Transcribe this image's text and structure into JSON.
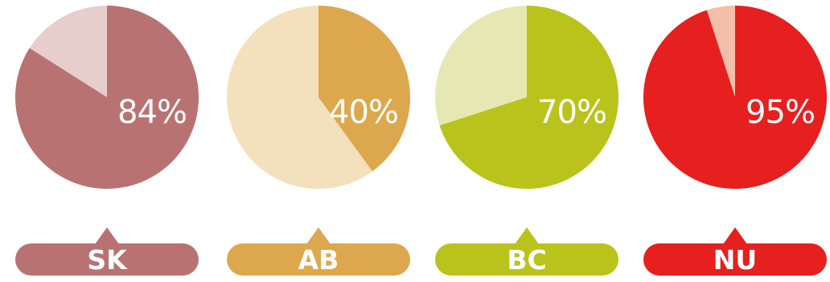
{
  "chart_data": {
    "type": "pie",
    "title": "",
    "charts": [
      {
        "region": "SK",
        "percent": 84,
        "value_label": "84%",
        "main_color": "#b97272",
        "rest_color": "#e8cdcd"
      },
      {
        "region": "AB",
        "percent": 40,
        "value_label": "40%",
        "main_color": "#dda84d",
        "rest_color": "#f3e0bd"
      },
      {
        "region": "BC",
        "percent": 70,
        "value_label": "70%",
        "main_color": "#b9c31c",
        "rest_color": "#e6e8b4"
      },
      {
        "region": "NU",
        "percent": 95,
        "value_label": "95%",
        "main_color": "#e61f1f",
        "rest_color": "#f3bfa8"
      }
    ]
  }
}
